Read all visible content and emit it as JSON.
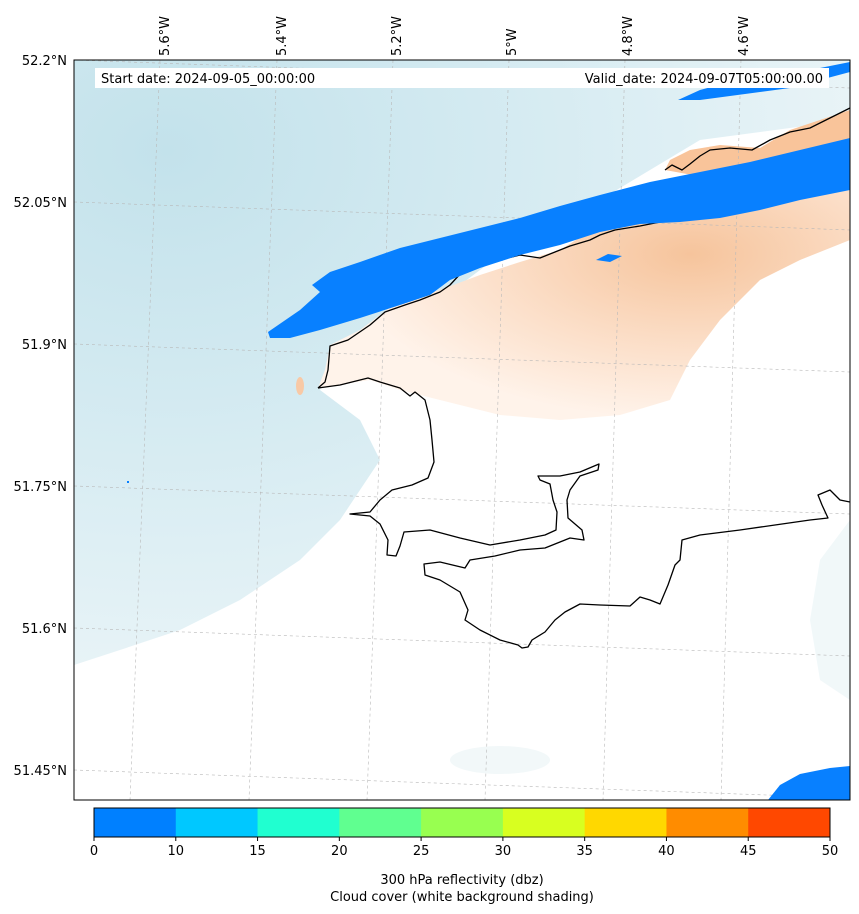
{
  "map": {
    "start_date": "Start date: 2024-09-05_00:00:00",
    "valid_date": "Valid_date: 2024-09-07T05:00:00.00",
    "lon_labels": [
      "5.6°W",
      "5.4°W",
      "5.2°W",
      "5°W",
      "4.8°W",
      "4.6°W"
    ],
    "lat_labels": [
      "52.2°N",
      "52.05°N",
      "51.9°N",
      "51.75°N",
      "51.6°N",
      "51.45°N"
    ]
  },
  "colorbar": {
    "ticks": [
      "0",
      "10",
      "15",
      "20",
      "25",
      "30",
      "35",
      "40",
      "45",
      "50"
    ],
    "colors": [
      "#0080ff",
      "#00c8ff",
      "#20ffd0",
      "#60ff90",
      "#98ff50",
      "#d8ff20",
      "#ffd800",
      "#ff8c00",
      "#ff4800"
    ],
    "label_line1": "300 hPa reflectivity (dbz)",
    "label_line2": "Cloud cover (white background shading)"
  },
  "legend_colors": {
    "cloud": "#cfe7ef",
    "land": "#f9c9a3",
    "reflectivity": "#0080ff"
  }
}
